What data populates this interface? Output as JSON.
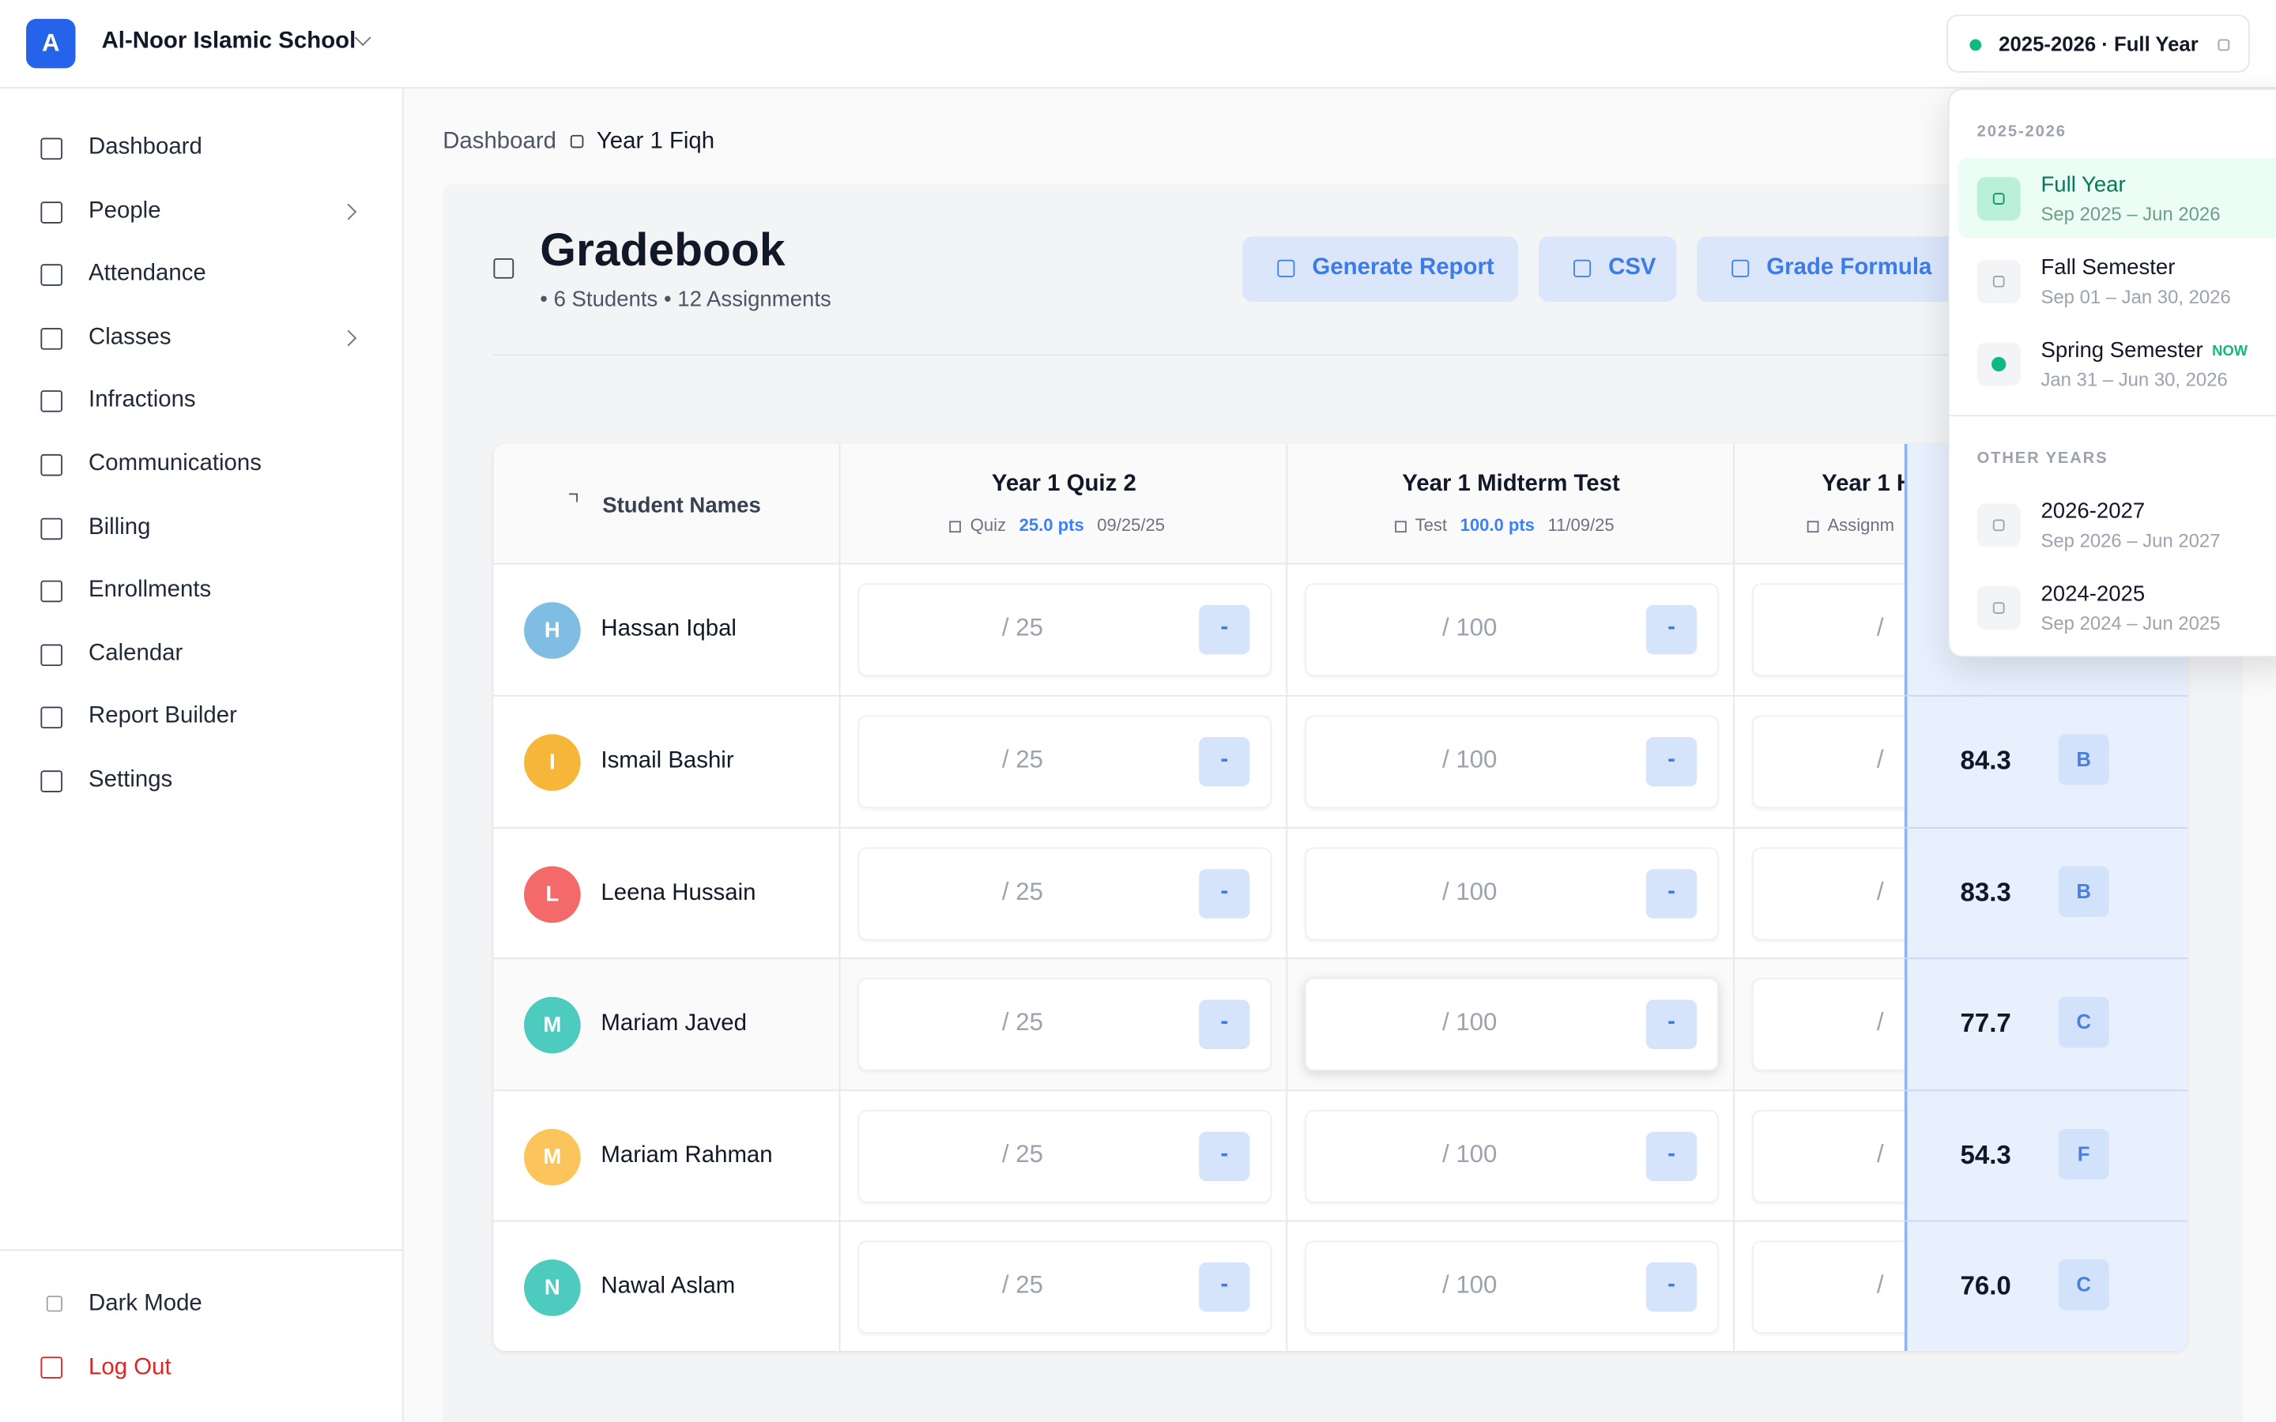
{
  "header": {
    "school_initial": "A",
    "school_name": "Al-Noor Islamic School",
    "period": "2025-2026 · Full Year"
  },
  "sidebar": {
    "items": [
      {
        "label": "Dashboard"
      },
      {
        "label": "People",
        "submenu": true
      },
      {
        "label": "Attendance"
      },
      {
        "label": "Classes",
        "submenu": true
      },
      {
        "label": "Infractions"
      },
      {
        "label": "Communications"
      },
      {
        "label": "Billing"
      },
      {
        "label": "Enrollments"
      },
      {
        "label": "Calendar"
      },
      {
        "label": "Report Builder"
      },
      {
        "label": "Settings"
      }
    ],
    "dark_mode": "Dark Mode",
    "log_out": "Log Out"
  },
  "breadcrumb": [
    "Dashboard",
    "Year 1 Fiqh"
  ],
  "page": {
    "title": "Gradebook",
    "students_count": "6 Students",
    "assignments_count": "12 Assignments",
    "buttons": [
      "Generate Report",
      "CSV",
      "Grade Formula"
    ]
  },
  "table": {
    "student_header": "Student Names",
    "empty_grade": "-",
    "columns": [
      {
        "title": "Year 1 Quiz 2",
        "kind": "Quiz",
        "points": "25.0 pts",
        "date": "09/25/25",
        "max": "/ 25"
      },
      {
        "title": "Year 1 Midterm Test",
        "kind": "Test",
        "points": "100.0 pts",
        "date": "11/09/25",
        "max": "/ 100"
      },
      {
        "title": "Year 1 H",
        "kind": "Assignm",
        "max": "/"
      }
    ],
    "students": [
      {
        "initial": "H",
        "name": "Hassan Iqbal",
        "color": "#7fbde2"
      },
      {
        "initial": "I",
        "name": "Ismail Bashir",
        "color": "#f6b63a",
        "average": "84.3",
        "letter": "B"
      },
      {
        "initial": "L",
        "name": "Leena Hussain",
        "color": "#f46a6a",
        "average": "83.3",
        "letter": "B"
      },
      {
        "initial": "M",
        "name": "Mariam Javed",
        "color": "#4ccbbe",
        "average": "77.7",
        "letter": "C",
        "highlighted": true
      },
      {
        "initial": "M",
        "name": "Mariam Rahman",
        "color": "#fbc55c",
        "average": "54.3",
        "letter": "F"
      },
      {
        "initial": "N",
        "name": "Nawal Aslam",
        "color": "#4ccbbe",
        "average": "76.0",
        "letter": "C"
      }
    ]
  },
  "dropdown": {
    "current_group": "2025-2026",
    "current": [
      {
        "name": "Full Year",
        "range": "Sep 2025 – Jun 2026",
        "selected": true
      },
      {
        "name": "Fall Semester",
        "range": "Sep 01 – Jan 30, 2026"
      },
      {
        "name": "Spring Semester",
        "badge": "NOW",
        "range": "Jan 31 – Jun 30, 2026"
      }
    ],
    "other_group": "OTHER YEARS",
    "other": [
      {
        "name": "2026-2027",
        "range": "Sep 2026 – Jun 2027"
      },
      {
        "name": "2024-2025",
        "range": "Sep 2024 – Jun 2025"
      }
    ]
  }
}
